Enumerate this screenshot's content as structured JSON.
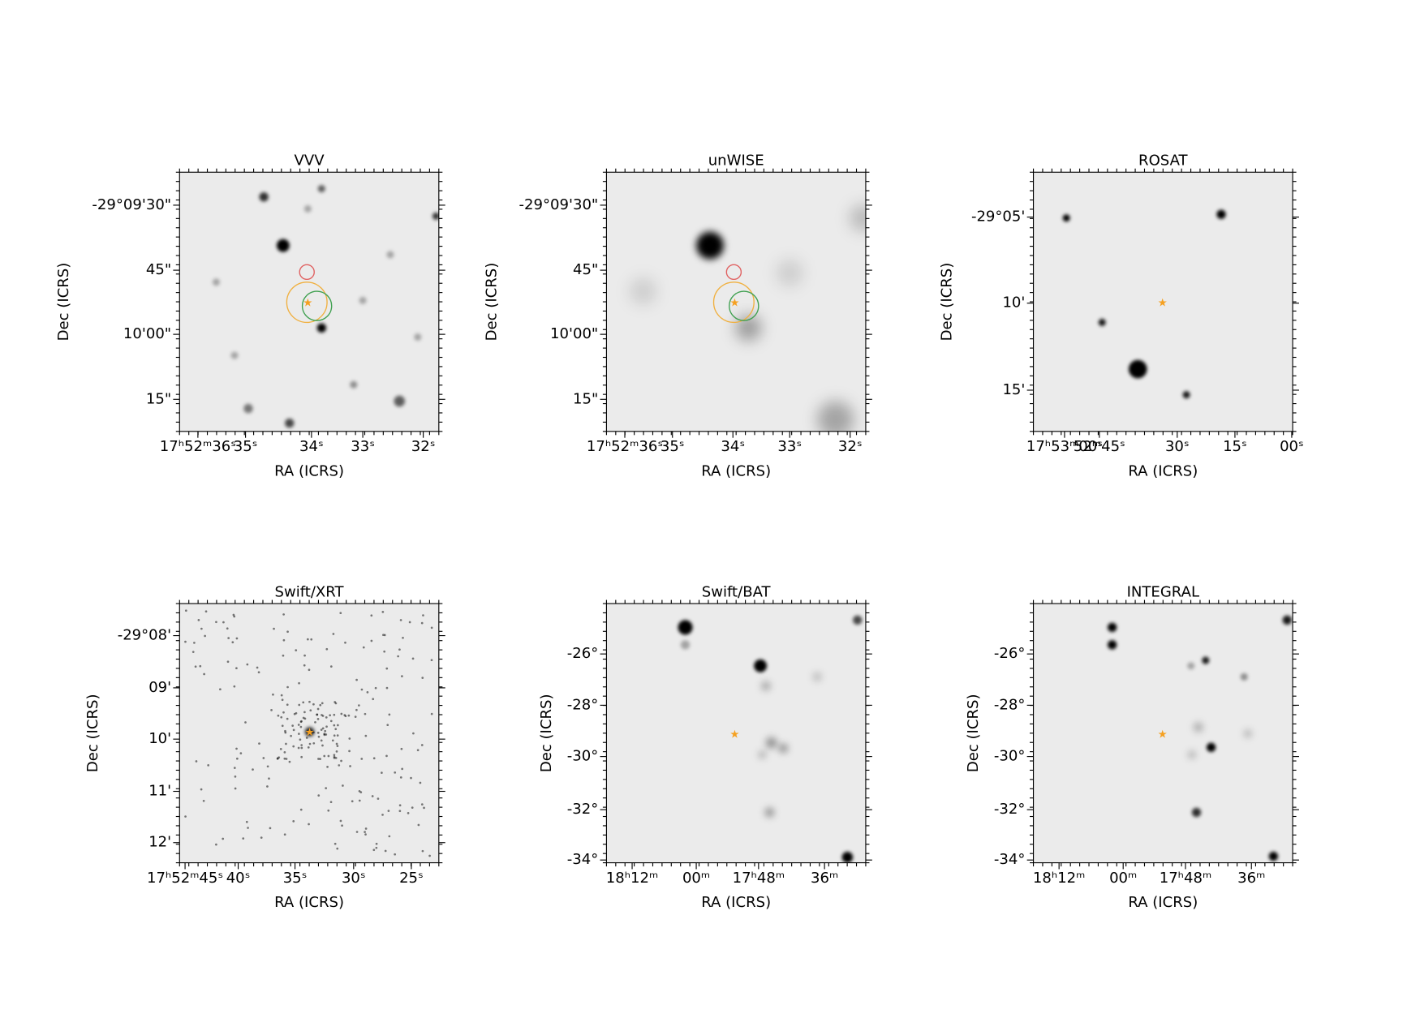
{
  "panels": [
    {
      "title": "VVV",
      "xlabel": "RA (ICRS)",
      "ylabel": "Dec (ICRS)",
      "xticks": [
        "17ʰ52ᵐ36ˢ",
        "35ˢ",
        "34ˢ",
        "33ˢ",
        "32ˢ"
      ],
      "yticks": [
        "-29°09'30\"",
        "45\"",
        "10'00\"",
        "15\""
      ]
    },
    {
      "title": "unWISE",
      "xlabel": "RA (ICRS)",
      "ylabel": "Dec (ICRS)",
      "xticks": [
        "17ʰ52ᵐ36ˢ",
        "35ˢ",
        "34ˢ",
        "33ˢ",
        "32ˢ"
      ],
      "yticks": [
        "-29°09'30\"",
        "45\"",
        "10'00\"",
        "15\""
      ]
    },
    {
      "title": "ROSAT",
      "xlabel": "RA (ICRS)",
      "ylabel": "Dec (ICRS)",
      "xticks": [
        "17ʰ53ᵐ00ˢ",
        "52ᵐ45ˢ",
        "30ˢ",
        "15ˢ",
        "00ˢ"
      ],
      "yticks": [
        "-29°05'",
        "10'",
        "15'"
      ]
    },
    {
      "title": "Swift/XRT",
      "xlabel": "RA (ICRS)",
      "ylabel": "Dec (ICRS)",
      "xticks": [
        "17ʰ52ᵐ45ˢ",
        "40ˢ",
        "35ˢ",
        "30ˢ",
        "25ˢ"
      ],
      "yticks": [
        "-29°08'",
        "09'",
        "10'",
        "11'",
        "12'"
      ]
    },
    {
      "title": "Swift/BAT",
      "xlabel": "RA (ICRS)",
      "ylabel": "Dec (ICRS)",
      "xticks": [
        "18ʰ12ᵐ",
        "00ᵐ",
        "17ʰ48ᵐ",
        "36ᵐ"
      ],
      "yticks": [
        "-26°",
        "-28°",
        "-30°",
        "-32°",
        "-34°"
      ]
    },
    {
      "title": "INTEGRAL",
      "xlabel": "RA (ICRS)",
      "ylabel": "Dec (ICRS)",
      "xticks": [
        "18ʰ12ᵐ",
        "00ᵐ",
        "17ʰ48ᵐ",
        "36ᵐ"
      ],
      "yticks": [
        "-26°",
        "-28°",
        "-30°",
        "-32°",
        "-34°"
      ]
    }
  ]
}
